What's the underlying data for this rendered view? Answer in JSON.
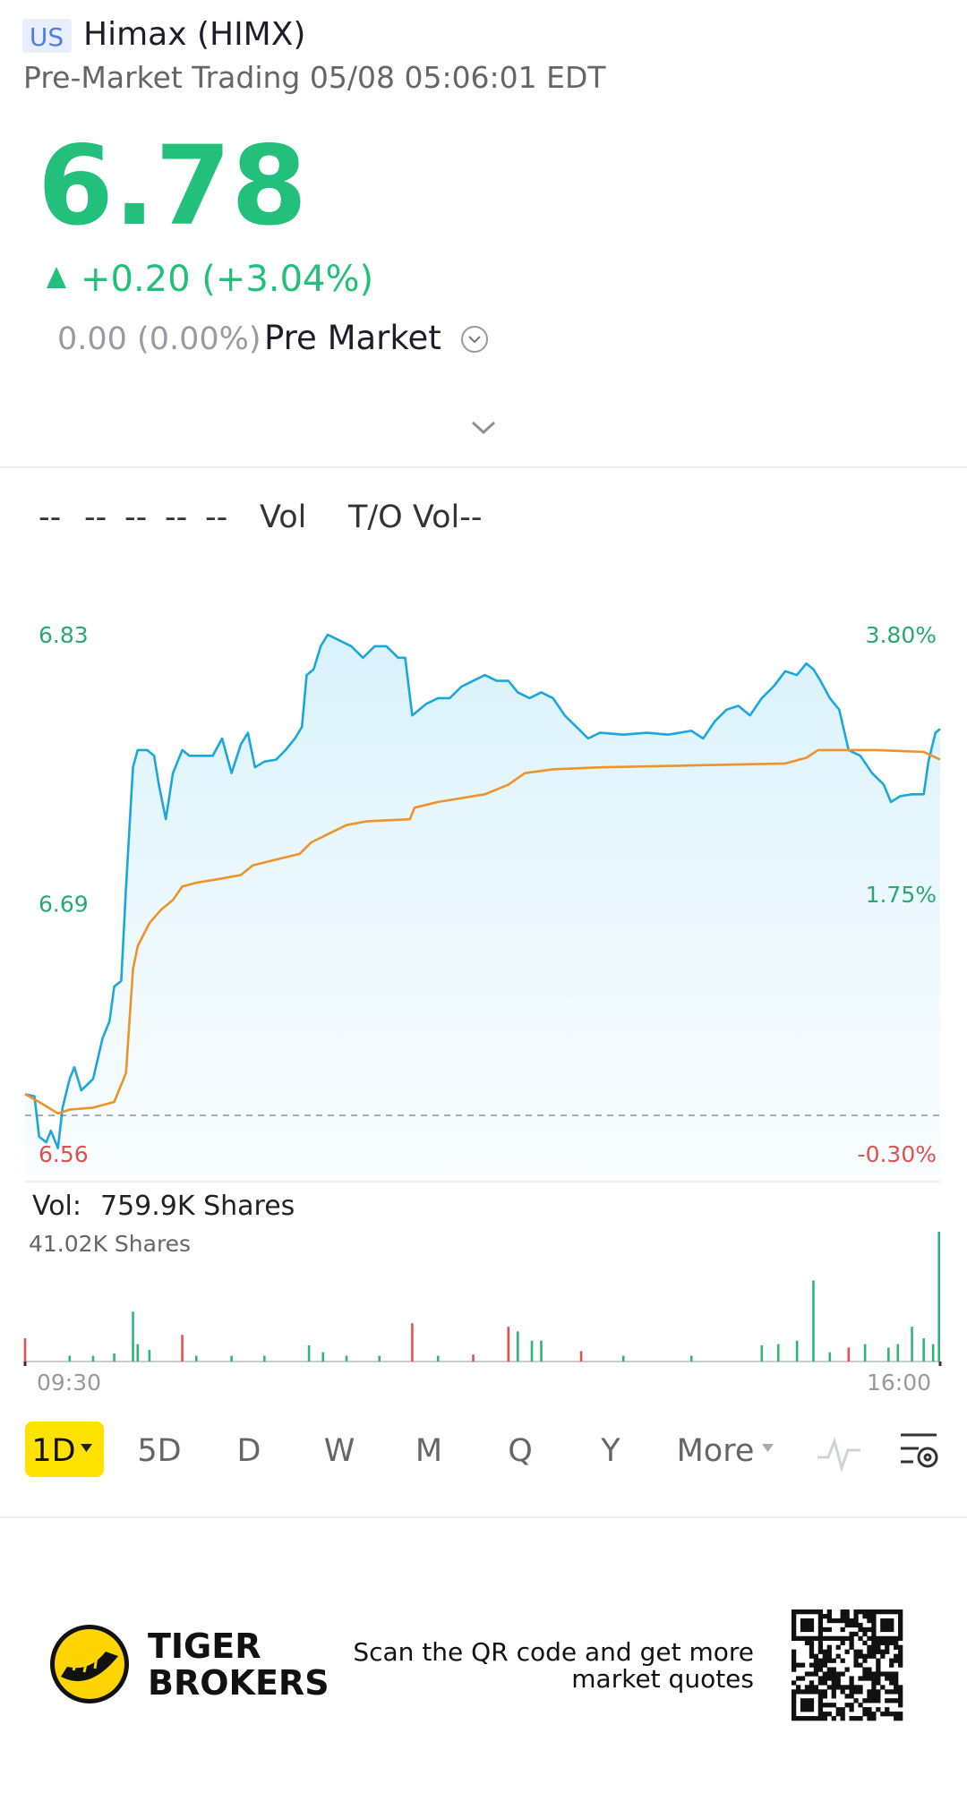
{
  "header": {
    "market": "US",
    "name": "Himax (HIMX)",
    "status": "Pre-Market Trading 05/08 05:06:01 EDT"
  },
  "quote": {
    "price": "6.78",
    "change": "+0.20 (+3.04%)",
    "extended": "0.00 (0.00%)",
    "session": "Pre Market"
  },
  "indicators": [
    "--",
    "--",
    "--",
    "--",
    "--",
    "Vol",
    "T/O Vol--"
  ],
  "chart_data": [
    {
      "type": "line",
      "xlim": [
        0,
        390
      ],
      "ylim": [
        6.56,
        6.83
      ],
      "yticks": [
        6.83,
        6.69,
        6.56
      ],
      "y2lim": [
        -0.3,
        3.8
      ],
      "y2ticks": [
        {
          "value": 3.8,
          "label": "3.80%"
        },
        {
          "value": 1.75,
          "label": "1.75%"
        },
        {
          "value": -0.3,
          "label": "-0.30%"
        }
      ],
      "baseline": 6.58,
      "series": [
        {
          "color": "#1ba6df",
          "x": [
            0,
            4,
            6,
            9,
            11,
            14,
            16,
            19,
            21,
            24,
            29,
            33,
            36,
            38,
            41,
            43,
            46,
            48,
            52,
            55,
            57,
            60,
            63,
            67,
            70,
            75,
            80,
            84,
            88,
            92,
            95,
            98,
            102,
            107,
            111,
            115,
            118,
            120,
            123,
            126,
            129,
            134,
            139,
            144,
            149,
            154,
            159,
            162,
            165,
            171,
            176,
            181,
            186,
            191,
            196,
            201,
            206,
            210,
            215,
            220,
            225,
            230,
            235,
            240,
            245,
            255,
            265,
            274,
            284,
            289,
            294,
            299,
            304,
            309,
            314,
            319,
            324,
            329,
            333,
            336,
            339,
            343,
            347,
            351,
            356,
            361,
            366,
            369,
            373,
            378,
            383,
            385,
            388,
            390
          ],
          "values": [
            6.591,
            6.59,
            6.569,
            6.566,
            6.572,
            6.563,
            6.584,
            6.599,
            6.605,
            6.593,
            6.599,
            6.62,
            6.629,
            6.647,
            6.65,
            6.698,
            6.761,
            6.77,
            6.77,
            6.767,
            6.752,
            6.734,
            6.758,
            6.77,
            6.767,
            6.767,
            6.767,
            6.776,
            6.758,
            6.773,
            6.779,
            6.761,
            6.764,
            6.765,
            6.77,
            6.776,
            6.782,
            6.809,
            6.812,
            6.824,
            6.83,
            6.827,
            6.824,
            6.818,
            6.824,
            6.824,
            6.818,
            6.818,
            6.788,
            6.794,
            6.797,
            6.797,
            6.803,
            6.806,
            6.809,
            6.806,
            6.806,
            6.8,
            6.797,
            6.8,
            6.797,
            6.788,
            6.782,
            6.776,
            6.779,
            6.778,
            6.779,
            6.778,
            6.78,
            6.776,
            6.785,
            6.791,
            6.793,
            6.788,
            6.797,
            6.803,
            6.811,
            6.809,
            6.815,
            6.812,
            6.806,
            6.797,
            6.791,
            6.77,
            6.767,
            6.758,
            6.752,
            6.743,
            6.746,
            6.747,
            6.747,
            6.764,
            6.779,
            6.781
          ]
        },
        {
          "color": "#ee922a",
          "x": [
            0,
            6,
            14,
            19,
            29,
            38,
            43,
            46,
            48,
            53,
            58,
            63,
            67,
            73,
            83,
            92,
            97,
            107,
            117,
            122,
            132,
            137,
            146,
            164,
            166,
            176,
            196,
            206,
            213,
            225,
            245,
            284,
            324,
            333,
            338,
            363,
            383,
            390
          ],
          "values": [
            6.591,
            6.587,
            6.581,
            6.583,
            6.584,
            6.587,
            6.602,
            6.656,
            6.668,
            6.68,
            6.687,
            6.692,
            6.699,
            6.701,
            6.703,
            6.705,
            6.71,
            6.713,
            6.716,
            6.722,
            6.728,
            6.731,
            6.733,
            6.734,
            6.74,
            6.743,
            6.747,
            6.752,
            6.758,
            6.76,
            6.761,
            6.762,
            6.763,
            6.766,
            6.77,
            6.77,
            6.769,
            6.765
          ]
        }
      ]
    },
    {
      "type": "bar",
      "title": "Vol:",
      "subtitle": "759.9K Shares",
      "xlim": [
        0,
        390
      ],
      "xticks": [
        {
          "value": 0,
          "label": "09:30"
        },
        {
          "value": 390,
          "label": "16:00"
        }
      ],
      "ylim": [
        0,
        41.02
      ],
      "yticks": [
        {
          "value": 41.02,
          "label": "41.02K Shares"
        }
      ],
      "x": [
        0,
        19,
        29,
        38,
        46,
        48,
        53,
        67,
        73,
        88,
        102,
        121,
        127,
        137,
        151,
        165,
        176,
        191,
        206,
        210,
        216,
        220,
        237,
        255,
        284,
        314,
        321,
        329,
        336,
        343,
        351,
        358,
        368,
        372,
        378,
        383,
        387,
        390
      ],
      "values": [
        7.33,
        1.83,
        1.83,
        2.56,
        15.75,
        5.49,
        3.66,
        8.42,
        1.83,
        1.83,
        1.83,
        5.13,
        2.93,
        1.83,
        1.83,
        12.09,
        1.83,
        2.2,
        10.99,
        9.52,
        6.59,
        6.59,
        3.3,
        1.83,
        1.83,
        5.13,
        5.49,
        6.59,
        25.64,
        2.93,
        4.4,
        5.49,
        4.4,
        5.49,
        10.99,
        7.33,
        5.49,
        41.02
      ],
      "colors": [
        "#e0524f",
        "#2fb57a",
        "#2fb57a",
        "#2fb57a",
        "#2fb57a",
        "#2fb57a",
        "#2fb57a",
        "#e0524f",
        "#2fb57a",
        "#2fb57a",
        "#2fb57a",
        "#2fb57a",
        "#2fb57a",
        "#2fb57a",
        "#2fb57a",
        "#e0524f",
        "#2fb57a",
        "#e0524f",
        "#e0524f",
        "#2fb57a",
        "#2fb57a",
        "#2fb57a",
        "#e0524f",
        "#2fb57a",
        "#2fb57a",
        "#2fb57a",
        "#2fb57a",
        "#2fb57a",
        "#2fb57a",
        "#2fb57a",
        "#e0524f",
        "#2fb57a",
        "#2fb57a",
        "#2fb57a",
        "#2fb57a",
        "#2fb57a",
        "#2fb57a",
        "#2fb57a"
      ]
    }
  ],
  "periods": [
    "1D",
    "5D",
    "D",
    "W",
    "M",
    "Q",
    "Y",
    "More"
  ],
  "footer": {
    "brand": [
      "TIGER",
      "BROKERS"
    ],
    "cta": [
      "Scan the QR code and get more",
      "market quotes"
    ]
  }
}
